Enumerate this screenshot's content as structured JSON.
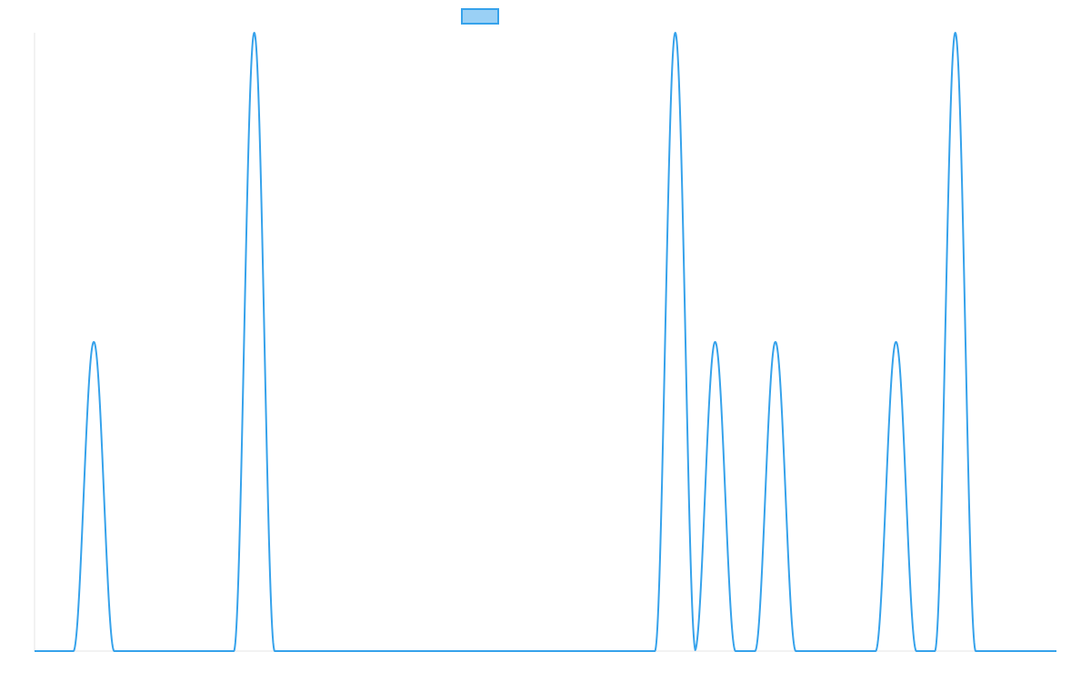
{
  "chart_data": {
    "type": "line",
    "title": "",
    "xlabel": "",
    "ylabel": "",
    "grid": false,
    "legend": "top-center",
    "xlim": [
      0,
      1000
    ],
    "ylim": [
      0,
      2
    ],
    "series": [
      {
        "name": "",
        "color": "#36a2eb",
        "fill": "#9ad0f5",
        "peaks": [
          {
            "center": 58,
            "height": 1
          },
          {
            "center": 215,
            "height": 2
          },
          {
            "center": 627,
            "height": 2
          },
          {
            "center": 666,
            "height": 1
          },
          {
            "center": 725,
            "height": 1
          },
          {
            "center": 843,
            "height": 1
          },
          {
            "center": 901,
            "height": 2
          }
        ],
        "peak_half_width": 20
      }
    ]
  }
}
